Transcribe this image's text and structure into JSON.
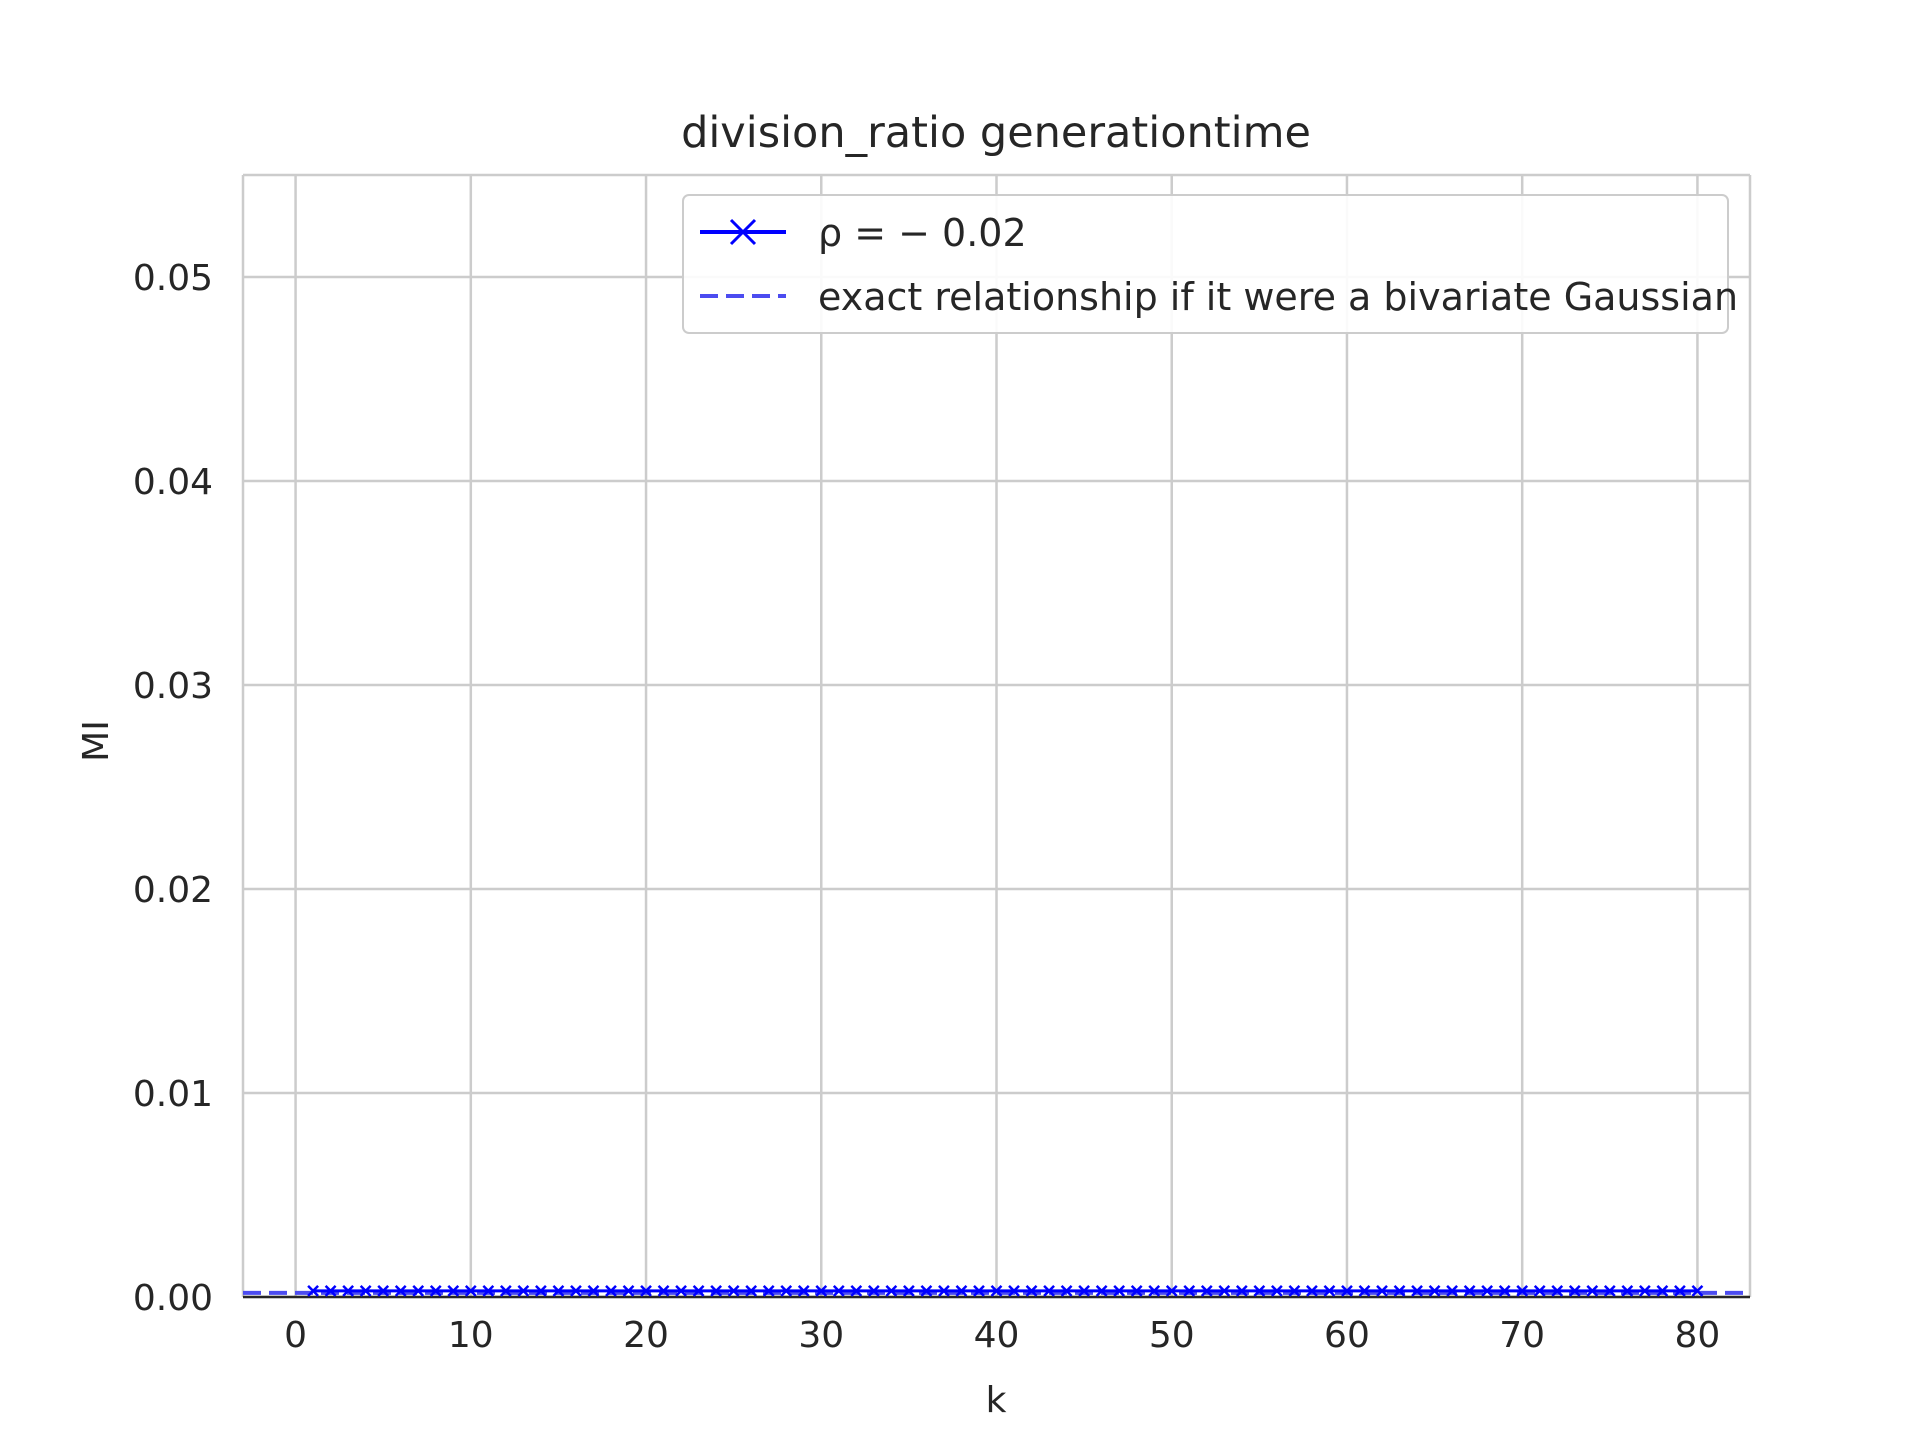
{
  "chart_data": {
    "type": "line",
    "title": "division_ratio generationtime",
    "xlabel": "k",
    "ylabel": "MI",
    "xlim": [
      -3,
      83
    ],
    "ylim": [
      0,
      0.055
    ],
    "xticks": [
      0,
      10,
      20,
      30,
      40,
      50,
      60,
      70,
      80
    ],
    "xtick_labels": [
      "0",
      "10",
      "20",
      "30",
      "40",
      "50",
      "60",
      "70",
      "80"
    ],
    "yticks": [
      0.0,
      0.01,
      0.02,
      0.03,
      0.04,
      0.05
    ],
    "ytick_labels": [
      "0.00",
      "0.01",
      "0.02",
      "0.03",
      "0.04",
      "0.05"
    ],
    "grid": true,
    "legend_position": "upper right",
    "series": [
      {
        "name": "ρ = − 0.02",
        "style": "solid line with x markers",
        "color": "#0000ff",
        "x": [
          1,
          2,
          3,
          4,
          5,
          6,
          7,
          8,
          9,
          10,
          11,
          12,
          13,
          14,
          15,
          16,
          17,
          18,
          19,
          20,
          21,
          22,
          23,
          24,
          25,
          26,
          27,
          28,
          29,
          30,
          31,
          32,
          33,
          34,
          35,
          36,
          37,
          38,
          39,
          40,
          41,
          42,
          43,
          44,
          45,
          46,
          47,
          48,
          49,
          50,
          51,
          52,
          53,
          54,
          55,
          56,
          57,
          58,
          59,
          60,
          61,
          62,
          63,
          64,
          65,
          66,
          67,
          68,
          69,
          70,
          71,
          72,
          73,
          74,
          75,
          76,
          77,
          78,
          79,
          80
        ],
        "y": [
          0.0003,
          0.0003,
          0.0003,
          0.0003,
          0.0003,
          0.0003,
          0.0003,
          0.0003,
          0.0003,
          0.0003,
          0.0003,
          0.0003,
          0.0003,
          0.0003,
          0.0003,
          0.0003,
          0.0003,
          0.0003,
          0.0003,
          0.0003,
          0.0003,
          0.0003,
          0.0003,
          0.0003,
          0.0003,
          0.0003,
          0.0003,
          0.0003,
          0.0003,
          0.0003,
          0.0003,
          0.0003,
          0.0003,
          0.0003,
          0.0003,
          0.0003,
          0.0003,
          0.0003,
          0.0003,
          0.0003,
          0.0003,
          0.0003,
          0.0003,
          0.0003,
          0.0003,
          0.0003,
          0.0003,
          0.0003,
          0.0003,
          0.0003,
          0.0003,
          0.0003,
          0.0003,
          0.0003,
          0.0003,
          0.0003,
          0.0003,
          0.0003,
          0.0003,
          0.0003,
          0.0003,
          0.0003,
          0.0003,
          0.0003,
          0.0003,
          0.0003,
          0.0003,
          0.0003,
          0.0003,
          0.0003,
          0.0003,
          0.0003,
          0.0003,
          0.0003,
          0.0003,
          0.0003,
          0.0003,
          0.0003,
          0.0003,
          0.0003
        ]
      },
      {
        "name": "exact relationship if it were a bivariate Gaussian",
        "style": "dashed line",
        "color": "#4c4cf0",
        "x": [
          -3,
          83
        ],
        "y": [
          0.0002,
          0.0002
        ]
      }
    ]
  }
}
